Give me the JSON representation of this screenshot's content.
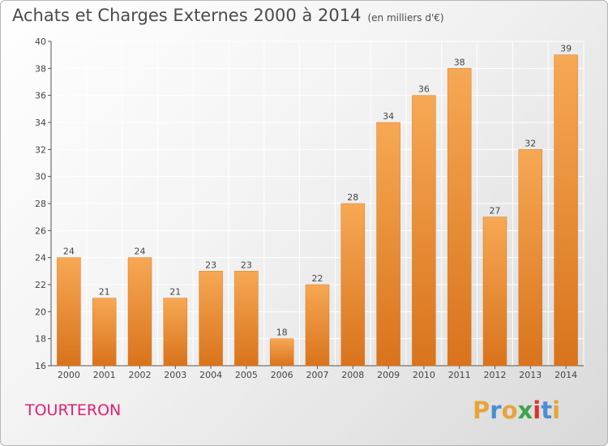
{
  "title": "Achats et Charges Externes 2000 à 2014",
  "unit": "(en milliers d'€)",
  "commune": "TOURTERON",
  "logo": {
    "letters": [
      "P",
      "r",
      "o",
      "x",
      "i",
      "t",
      "i"
    ],
    "colors": [
      "#e8a33a",
      "#4a8fd4",
      "#e8a33a",
      "#3aa64a",
      "#d8342a",
      "#4a8fd4",
      "#e8a33a"
    ]
  },
  "colors": {
    "bar_top": "#f7a854",
    "bar_bottom": "#d9731c",
    "bar_edge": "#d67a24",
    "axis_text": "#444444",
    "grid": "#ffffff"
  },
  "chart_data": {
    "type": "bar",
    "categories": [
      "2000",
      "2001",
      "2002",
      "2003",
      "2004",
      "2005",
      "2006",
      "2007",
      "2008",
      "2009",
      "2010",
      "2011",
      "2012",
      "2013",
      "2014"
    ],
    "values": [
      24,
      21,
      24,
      21,
      23,
      23,
      18,
      22,
      28,
      34,
      36,
      38,
      27,
      32,
      39
    ],
    "title": "Achats et Charges Externes 2000 à 2014",
    "xlabel": "",
    "ylabel": "",
    "ylim": [
      16,
      40
    ],
    "yticks": [
      16,
      18,
      20,
      22,
      24,
      26,
      28,
      30,
      32,
      34,
      36,
      38,
      40
    ],
    "grid": true,
    "data_labels": true
  }
}
